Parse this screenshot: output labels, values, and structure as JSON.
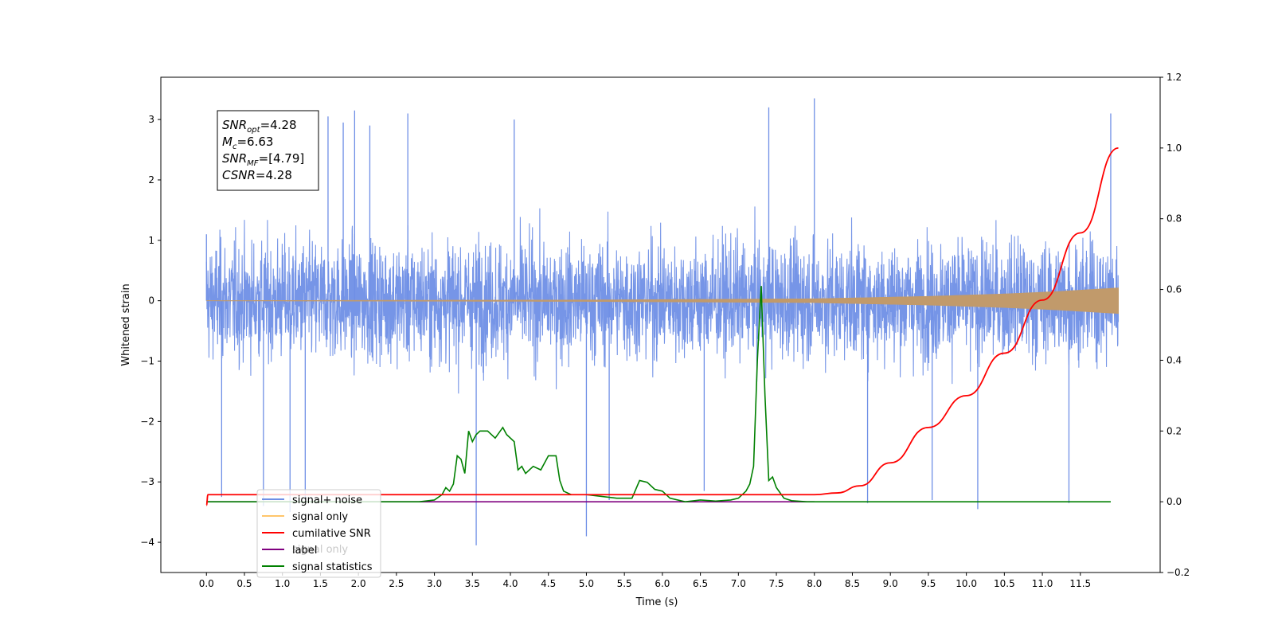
{
  "chart_data": {
    "type": "line",
    "xlabel": "Time (s)",
    "ylabel": "Whitened strain",
    "xlim": [
      -0.6,
      12.55
    ],
    "ylim": [
      -4.5,
      3.7
    ],
    "y2lim": [
      -0.2,
      1.2
    ],
    "x_ticks": [
      0.0,
      0.5,
      1.0,
      1.5,
      2.0,
      2.5,
      3.0,
      3.5,
      4.0,
      4.5,
      5.0,
      5.5,
      6.0,
      6.5,
      7.0,
      7.5,
      8.0,
      8.5,
      9.0,
      9.5,
      10.0,
      10.5,
      11.0,
      11.5
    ],
    "x_tick_labels": [
      "0.0",
      "0.5",
      "1.0",
      "1.5",
      "2.0",
      "2.5",
      "3.0",
      "3.5",
      "4.0",
      "4.5",
      "5.0",
      "5.5",
      "6.0",
      "6.5",
      "7.0",
      "7.5",
      "8.0",
      "8.5",
      "9.0",
      "9.5",
      "10.0",
      "10.5",
      "11.0",
      "11.5"
    ],
    "y_ticks": [
      -4,
      -3,
      -2,
      -1,
      0,
      1,
      2,
      3
    ],
    "y_tick_labels": [
      "−4",
      "−3",
      "−2",
      "−1",
      "0",
      "1",
      "2",
      "3"
    ],
    "y2_ticks": [
      -0.2,
      0.0,
      0.2,
      0.4,
      0.6,
      0.8,
      1.0,
      1.2
    ],
    "y2_tick_labels": [
      "−0.2",
      "0.0",
      "0.2",
      "0.4",
      "0.6",
      "0.8",
      "1.0",
      "1.2"
    ],
    "grid": false,
    "legend_position": "bottom-left",
    "series": [
      {
        "name": "signal+ noise",
        "axis": "left",
        "color": "#6f8fe6",
        "style": "dense-noise",
        "x_range": [
          0.0,
          12.0
        ],
        "typical_range": [
          -1.6,
          1.6
        ],
        "x": [
          0.0,
          0.2,
          0.75,
          1.1,
          1.3,
          1.6,
          1.8,
          1.95,
          2.15,
          2.65,
          3.55,
          4.05,
          5.0,
          5.3,
          6.55,
          7.4,
          8.0,
          8.7,
          9.55,
          10.15,
          11.35,
          11.9
        ],
        "values": [
          1.1,
          -3.25,
          -3.4,
          -3.5,
          -3.3,
          3.05,
          2.95,
          3.15,
          2.9,
          3.1,
          -4.05,
          3.0,
          -3.9,
          -3.3,
          -3.15,
          3.2,
          3.35,
          -3.35,
          -3.3,
          -3.45,
          -3.35,
          3.1
        ]
      },
      {
        "name": "signal only",
        "axis": "left",
        "color": "#c19a6b",
        "style": "chirp",
        "x": [
          0.0,
          5.0,
          8.0,
          9.5,
          10.5,
          11.2,
          12.0
        ],
        "values": [
          0.0,
          0.01,
          0.03,
          0.07,
          0.11,
          0.15,
          0.21
        ]
      },
      {
        "name": "cumilative SNR",
        "axis": "right",
        "color": "#ff0000",
        "style": "line",
        "x": [
          0.0,
          0.02,
          8.0,
          8.3,
          8.6,
          9.0,
          9.5,
          10.0,
          10.5,
          11.0,
          11.5,
          12.0
        ],
        "values": [
          -0.01,
          0.02,
          0.02,
          0.025,
          0.045,
          0.11,
          0.21,
          0.3,
          0.42,
          0.57,
          0.76,
          1.0
        ]
      },
      {
        "name": "label",
        "axis": "right",
        "color": "#800080",
        "style": "line",
        "x": [
          0.0,
          8.0
        ],
        "values": [
          0.0,
          0.0
        ]
      },
      {
        "name": "signal statistics",
        "axis": "right",
        "color": "#008000",
        "style": "line",
        "x": [
          0.0,
          2.8,
          3.0,
          3.1,
          3.15,
          3.2,
          3.25,
          3.3,
          3.35,
          3.4,
          3.45,
          3.5,
          3.55,
          3.6,
          3.7,
          3.8,
          3.9,
          3.95,
          4.05,
          4.1,
          4.15,
          4.2,
          4.3,
          4.4,
          4.5,
          4.6,
          4.65,
          4.7,
          4.8,
          4.9,
          5.0,
          5.2,
          5.4,
          5.6,
          5.7,
          5.8,
          5.9,
          6.0,
          6.1,
          6.3,
          6.5,
          6.7,
          6.9,
          7.0,
          7.1,
          7.15,
          7.2,
          7.25,
          7.3,
          7.35,
          7.4,
          7.45,
          7.5,
          7.6,
          7.7,
          7.9,
          8.2,
          11.9
        ],
        "values": [
          0.0,
          0.0,
          0.005,
          0.02,
          0.04,
          0.03,
          0.05,
          0.13,
          0.12,
          0.08,
          0.2,
          0.17,
          0.19,
          0.2,
          0.2,
          0.18,
          0.21,
          0.19,
          0.17,
          0.09,
          0.1,
          0.08,
          0.1,
          0.09,
          0.13,
          0.13,
          0.06,
          0.03,
          0.02,
          0.02,
          0.02,
          0.015,
          0.01,
          0.01,
          0.06,
          0.055,
          0.035,
          0.03,
          0.01,
          0.0,
          0.005,
          0.002,
          0.005,
          0.01,
          0.03,
          0.05,
          0.1,
          0.4,
          0.61,
          0.3,
          0.06,
          0.07,
          0.04,
          0.01,
          0.003,
          0.0,
          0.0,
          0.0
        ]
      }
    ],
    "annotation_lines": [
      {
        "main": "SNR",
        "sub": "opt",
        "rest": "=4.28"
      },
      {
        "main": "M",
        "sub": "c",
        "rest": "=6.63"
      },
      {
        "main": "SNR",
        "sub": "MF",
        "rest": "=[4.79]"
      },
      {
        "main": "CSNR",
        "sub": "",
        "rest": "=4.28"
      }
    ],
    "legend": [
      "signal+ noise",
      "signal only",
      "cumilative SNR",
      "label",
      "signal statistics"
    ],
    "legend_colors": [
      "#6f8fe6",
      "#ffc66b",
      "#ff0000",
      "#800080",
      "#008000"
    ],
    "legend_ghost_text": "signal only"
  }
}
